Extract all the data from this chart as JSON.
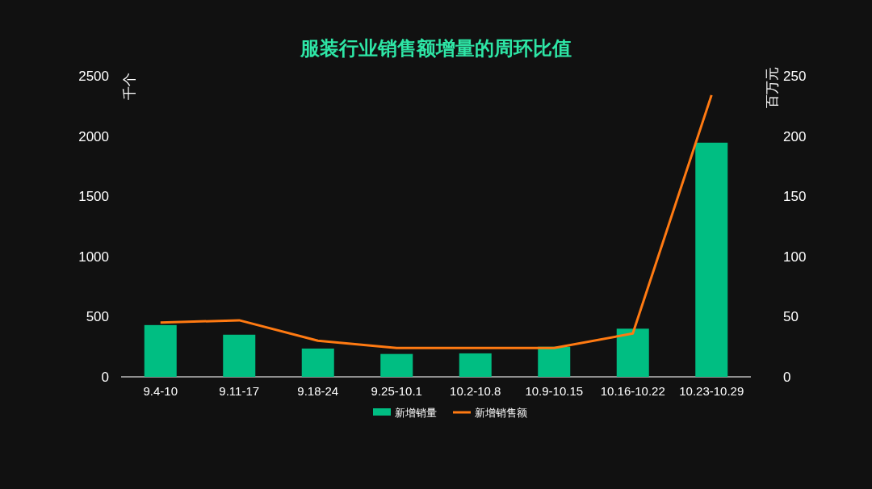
{
  "chart_data": {
    "type": "bar",
    "title": "服装行业销售额增量的周环比值",
    "ylabel": "千个",
    "y2label": "百万元",
    "categories": [
      "9.4-10",
      "9.11-17",
      "9.18-24",
      "9.25-10.1",
      "10.2-10.8",
      "10.9-10.15",
      "10.16-10.22",
      "10.23-10.29"
    ],
    "series": [
      {
        "name": "新增销量",
        "color": "#00be82",
        "values": [
          430,
          350,
          235,
          190,
          195,
          250,
          400,
          1945
        ]
      },
      {
        "name": "新增销售额",
        "type": "line",
        "axis": "y2",
        "color": "#ff7a12",
        "values": [
          45,
          47,
          30,
          24,
          24,
          24,
          36,
          234
        ]
      }
    ],
    "ylim": [
      0,
      2500
    ],
    "yticks": [
      0,
      500,
      1000,
      1500,
      2000,
      2500
    ],
    "y2lim": [
      0,
      250
    ],
    "y2ticks": [
      0,
      50,
      100,
      150,
      200,
      250
    ],
    "grid": false,
    "legend": "bottom"
  }
}
